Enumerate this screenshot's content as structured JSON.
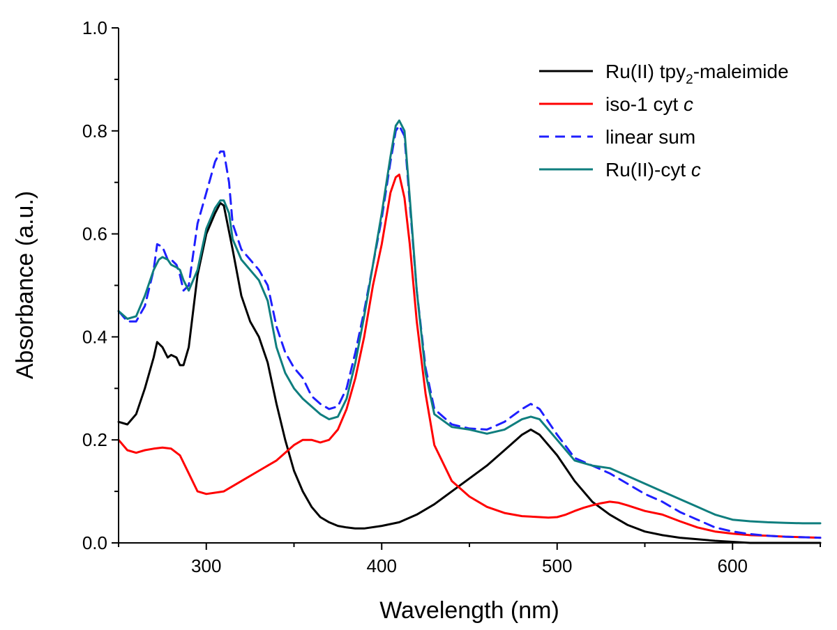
{
  "chart_data": {
    "type": "line",
    "title": "",
    "xlabel": "Wavelength (nm)",
    "ylabel": "Absorbance (a.u.)",
    "xlim": [
      250,
      650
    ],
    "ylim": [
      0.0,
      1.0
    ],
    "x_ticks": [
      300,
      400,
      500,
      600
    ],
    "x_tick_labels": [
      "300",
      "400",
      "500",
      "600"
    ],
    "y_ticks": [
      0.0,
      0.2,
      0.4,
      0.6,
      0.8,
      1.0
    ],
    "y_tick_labels": [
      "0.0",
      "0.2",
      "0.4",
      "0.6",
      "0.8",
      "1.0"
    ],
    "grid": false,
    "legend_position": "top-right",
    "series": [
      {
        "name": "Ru(II) tpy2-maleimide",
        "legend_main": "Ru(II) tpy",
        "legend_sub": "2",
        "legend_tail": "-maleimide",
        "legend_italic": "",
        "color": "#000000",
        "dash": "solid",
        "x": [
          250,
          255,
          260,
          265,
          270,
          272,
          275,
          278,
          280,
          283,
          285,
          287,
          290,
          295,
          300,
          305,
          308,
          310,
          315,
          320,
          325,
          330,
          335,
          340,
          345,
          350,
          355,
          360,
          365,
          370,
          375,
          380,
          385,
          390,
          400,
          410,
          420,
          430,
          440,
          450,
          460,
          470,
          480,
          485,
          490,
          500,
          510,
          520,
          530,
          540,
          550,
          560,
          570,
          580,
          590,
          600,
          610,
          620,
          630,
          640,
          650
        ],
        "y": [
          0.235,
          0.23,
          0.25,
          0.3,
          0.36,
          0.39,
          0.38,
          0.36,
          0.365,
          0.36,
          0.345,
          0.345,
          0.38,
          0.52,
          0.6,
          0.64,
          0.66,
          0.655,
          0.57,
          0.48,
          0.43,
          0.4,
          0.35,
          0.27,
          0.2,
          0.14,
          0.1,
          0.07,
          0.05,
          0.04,
          0.033,
          0.03,
          0.028,
          0.028,
          0.033,
          0.04,
          0.055,
          0.075,
          0.1,
          0.125,
          0.15,
          0.18,
          0.21,
          0.22,
          0.21,
          0.17,
          0.12,
          0.08,
          0.055,
          0.035,
          0.022,
          0.015,
          0.01,
          0.007,
          0.004,
          0.002,
          0.0,
          0.0,
          0.0,
          0.0,
          0.0
        ]
      },
      {
        "name": "iso-1 cyt c",
        "legend_main": "iso-1 cyt ",
        "legend_sub": "",
        "legend_tail": "",
        "legend_italic": "c",
        "color": "#ff0000",
        "dash": "solid",
        "x": [
          250,
          255,
          260,
          265,
          270,
          275,
          280,
          285,
          290,
          295,
          300,
          310,
          320,
          330,
          340,
          350,
          355,
          360,
          365,
          370,
          375,
          380,
          385,
          390,
          395,
          400,
          405,
          408,
          410,
          413,
          416,
          420,
          425,
          430,
          440,
          450,
          460,
          470,
          480,
          490,
          495,
          500,
          505,
          510,
          515,
          520,
          525,
          530,
          535,
          540,
          550,
          560,
          570,
          580,
          590,
          600,
          610,
          620,
          630,
          640,
          650
        ],
        "y": [
          0.2,
          0.18,
          0.175,
          0.18,
          0.183,
          0.185,
          0.183,
          0.17,
          0.135,
          0.1,
          0.095,
          0.1,
          0.12,
          0.14,
          0.16,
          0.19,
          0.2,
          0.2,
          0.195,
          0.2,
          0.22,
          0.26,
          0.32,
          0.4,
          0.5,
          0.58,
          0.68,
          0.71,
          0.715,
          0.67,
          0.58,
          0.43,
          0.29,
          0.19,
          0.12,
          0.09,
          0.07,
          0.058,
          0.052,
          0.05,
          0.049,
          0.05,
          0.055,
          0.062,
          0.068,
          0.073,
          0.077,
          0.08,
          0.078,
          0.073,
          0.062,
          0.055,
          0.042,
          0.03,
          0.022,
          0.018,
          0.015,
          0.014,
          0.012,
          0.011,
          0.01
        ]
      },
      {
        "name": "linear sum",
        "legend_main": "linear sum",
        "legend_sub": "",
        "legend_tail": "",
        "legend_italic": "",
        "color": "#1f1fff",
        "dash": "dashed",
        "x": [
          250,
          255,
          260,
          265,
          270,
          272,
          275,
          278,
          280,
          283,
          285,
          287,
          290,
          295,
          300,
          305,
          308,
          310,
          313,
          315,
          320,
          325,
          330,
          335,
          340,
          345,
          350,
          355,
          360,
          365,
          370,
          375,
          380,
          385,
          390,
          400,
          405,
          408,
          410,
          413,
          416,
          420,
          425,
          430,
          440,
          450,
          460,
          470,
          480,
          485,
          490,
          500,
          510,
          520,
          530,
          540,
          550,
          560,
          570,
          580,
          590,
          600,
          610,
          620,
          630,
          640,
          650
        ],
        "y": [
          0.45,
          0.43,
          0.43,
          0.46,
          0.53,
          0.58,
          0.575,
          0.55,
          0.55,
          0.54,
          0.52,
          0.49,
          0.5,
          0.62,
          0.68,
          0.74,
          0.76,
          0.76,
          0.7,
          0.62,
          0.57,
          0.55,
          0.53,
          0.5,
          0.42,
          0.37,
          0.34,
          0.32,
          0.285,
          0.27,
          0.26,
          0.265,
          0.3,
          0.37,
          0.45,
          0.63,
          0.74,
          0.8,
          0.81,
          0.79,
          0.66,
          0.49,
          0.34,
          0.26,
          0.23,
          0.222,
          0.22,
          0.235,
          0.26,
          0.27,
          0.26,
          0.21,
          0.165,
          0.15,
          0.135,
          0.115,
          0.095,
          0.08,
          0.06,
          0.045,
          0.03,
          0.022,
          0.017,
          0.014,
          0.012,
          0.011,
          0.01
        ]
      },
      {
        "name": "Ru(II)-cyt c",
        "legend_main": "Ru(II)-cyt ",
        "legend_sub": "",
        "legend_tail": "",
        "legend_italic": "c",
        "color": "#0f7e7e",
        "dash": "solid",
        "x": [
          250,
          255,
          260,
          265,
          270,
          273,
          275,
          278,
          280,
          283,
          285,
          287,
          290,
          295,
          300,
          305,
          308,
          310,
          313,
          315,
          320,
          325,
          330,
          335,
          340,
          345,
          350,
          355,
          360,
          365,
          370,
          375,
          380,
          385,
          390,
          400,
          405,
          408,
          410,
          413,
          416,
          420,
          425,
          430,
          440,
          450,
          460,
          470,
          480,
          485,
          490,
          500,
          510,
          520,
          530,
          540,
          550,
          560,
          570,
          580,
          590,
          600,
          610,
          620,
          630,
          640,
          650
        ],
        "y": [
          0.45,
          0.435,
          0.44,
          0.48,
          0.53,
          0.55,
          0.555,
          0.55,
          0.54,
          0.535,
          0.53,
          0.51,
          0.49,
          0.53,
          0.61,
          0.65,
          0.665,
          0.665,
          0.64,
          0.59,
          0.55,
          0.53,
          0.51,
          0.47,
          0.38,
          0.33,
          0.3,
          0.28,
          0.265,
          0.25,
          0.24,
          0.245,
          0.28,
          0.35,
          0.44,
          0.64,
          0.75,
          0.81,
          0.82,
          0.8,
          0.67,
          0.49,
          0.33,
          0.25,
          0.225,
          0.22,
          0.212,
          0.22,
          0.24,
          0.245,
          0.24,
          0.2,
          0.16,
          0.15,
          0.145,
          0.13,
          0.115,
          0.1,
          0.085,
          0.07,
          0.055,
          0.045,
          0.042,
          0.04,
          0.039,
          0.038,
          0.038
        ]
      }
    ]
  }
}
